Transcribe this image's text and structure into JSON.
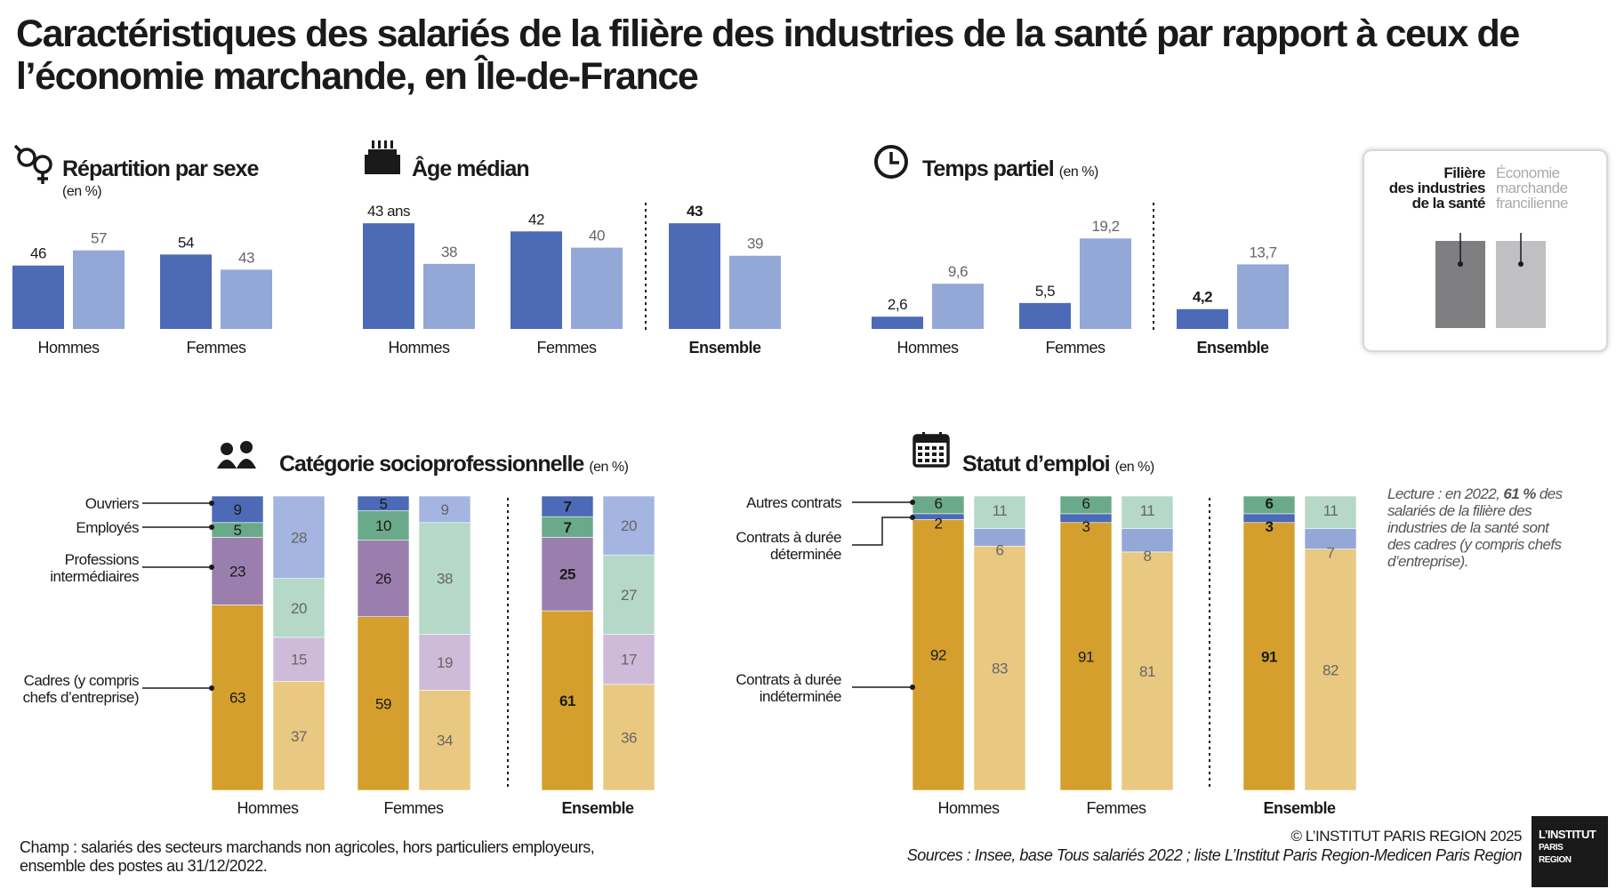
{
  "title": "Caractéristiques des salariés de la filière des industries de la santé par rapport à ceux de l’économie marchande, en Île-de-France",
  "colors": {
    "sante_dark": "#4c6ab5",
    "eco_light": "#93a8d7",
    "cadres_sante": "#d49f2c",
    "cadres_eco": "#e9c981",
    "prof_sante": "#9a7fae",
    "prof_eco": "#cdbbd9",
    "employes_sante": "#6aaa8a",
    "employes_eco": "#b5d8c8",
    "ouvriers_sante": "#4c6ab5",
    "ouvriers_eco": "#a3b5e0",
    "legend_dark": "#7e7e80",
    "legend_light": "#c0c0c2"
  },
  "legend": {
    "sante_label": [
      "Filière",
      "des industries",
      "de la santé"
    ],
    "eco_label": [
      "Économie",
      "marchande",
      "francilienne"
    ]
  },
  "chart_data": [
    {
      "type": "bar",
      "id": "sexe",
      "title": "Répartition par sexe",
      "subtitle": "(en %)",
      "icon": "gender-icon",
      "categories": [
        "Hommes",
        "Femmes"
      ],
      "series": [
        {
          "name": "Filière des industries de la santé",
          "values": [
            46,
            54
          ]
        },
        {
          "name": "Économie marchande francilienne",
          "values": [
            57,
            43
          ]
        }
      ],
      "labels": [
        [
          "46",
          "57"
        ],
        [
          "54",
          "43"
        ]
      ],
      "ylim": [
        0,
        100
      ]
    },
    {
      "type": "bar",
      "id": "age",
      "title": "Âge médian",
      "subtitle": "",
      "icon": "birthday-cake-icon",
      "categories": [
        "Hommes",
        "Femmes",
        "Ensemble"
      ],
      "series": [
        {
          "name": "Filière des industries de la santé",
          "values": [
            43,
            42,
            43
          ]
        },
        {
          "name": "Économie marchande francilienne",
          "values": [
            38,
            40,
            39
          ]
        }
      ],
      "labels": [
        [
          "43 ans",
          "38"
        ],
        [
          "42",
          "40"
        ],
        [
          "43",
          "39"
        ]
      ],
      "ylim": [
        30,
        45
      ]
    },
    {
      "type": "bar",
      "id": "temps",
      "title": "Temps partiel",
      "subtitle": "(en %)",
      "icon": "clock-icon",
      "categories": [
        "Hommes",
        "Femmes",
        "Ensemble"
      ],
      "series": [
        {
          "name": "Filière des industries de la santé",
          "values": [
            2.6,
            5.5,
            4.2
          ]
        },
        {
          "name": "Économie marchande francilienne",
          "values": [
            9.6,
            19.2,
            13.7
          ]
        }
      ],
      "labels": [
        [
          "2,6",
          "9,6"
        ],
        [
          "5,5",
          "19,2"
        ],
        [
          "4,2",
          "13,7"
        ]
      ],
      "ylim": [
        0,
        20
      ]
    },
    {
      "type": "bar",
      "stacked": true,
      "id": "csp",
      "title": "Catégorie socioprofessionnelle",
      "subtitle": "(en %)",
      "icon": "people-icon",
      "categories": [
        "Hommes",
        "Femmes",
        "Ensemble"
      ],
      "stack_order": [
        "Cadres (y compris chefs d’entreprise)",
        "Professions intermédiaires",
        "Employés",
        "Ouvriers"
      ],
      "side_labels": [
        [
          "Ouvriers"
        ],
        [
          "Employés"
        ],
        [
          "Professions",
          "intermédiaires"
        ],
        [
          "Cadres (y compris",
          "chefs d’entreprise)"
        ]
      ],
      "series": [
        {
          "name": "Filière des industries de la santé",
          "stacks": [
            [
              63,
              23,
              5,
              9
            ],
            [
              59,
              26,
              10,
              5
            ],
            [
              61,
              25,
              7,
              7
            ]
          ]
        },
        {
          "name": "Économie marchande francilienne",
          "stacks": [
            [
              37,
              15,
              20,
              28
            ],
            [
              34,
              19,
              38,
              9
            ],
            [
              36,
              17,
              27,
              20
            ]
          ]
        }
      ]
    },
    {
      "type": "bar",
      "stacked": true,
      "id": "statut",
      "title": "Statut d’emploi",
      "subtitle": "(en %)",
      "icon": "calendar-icon",
      "categories": [
        "Hommes",
        "Femmes",
        "Ensemble"
      ],
      "stack_order": [
        "Contrats à durée indéterminée",
        "Contrats à durée déterminée",
        "Autres contrats"
      ],
      "side_labels": [
        [
          "Autres contrats"
        ],
        [
          "Contrats à durée",
          "déterminée"
        ],
        [
          "Contrats à durée",
          "indéterminée"
        ]
      ],
      "series": [
        {
          "name": "Filière des industries de la santé",
          "stacks": [
            [
              92,
              2,
              6
            ],
            [
              91,
              3,
              6
            ],
            [
              91,
              3,
              6
            ]
          ]
        },
        {
          "name": "Économie marchande francilienne",
          "stacks": [
            [
              83,
              6,
              11
            ],
            [
              81,
              8,
              11
            ],
            [
              82,
              7,
              11
            ]
          ]
        }
      ]
    }
  ],
  "lecture": {
    "prefix": "Lecture : en 2022, ",
    "highlight": "61 %",
    "suffix": " des salariés de la filière des industries de la santé sont des cadres (y compris chefs d’entreprise)."
  },
  "champ": "Champ : salariés des secteurs marchands non agricoles, hors particuliers employeurs, ensemble des postes au 31/12/2022.",
  "copyright": "© L’INSTITUT PARIS REGION 2025",
  "sources": "Sources : Insee, base Tous salariés 2022 ; liste L’Institut Paris Region-Medicen Paris Region",
  "logo": {
    "line1": "L’INSTITUT",
    "line2": "PARIS",
    "line3": "REGION"
  }
}
